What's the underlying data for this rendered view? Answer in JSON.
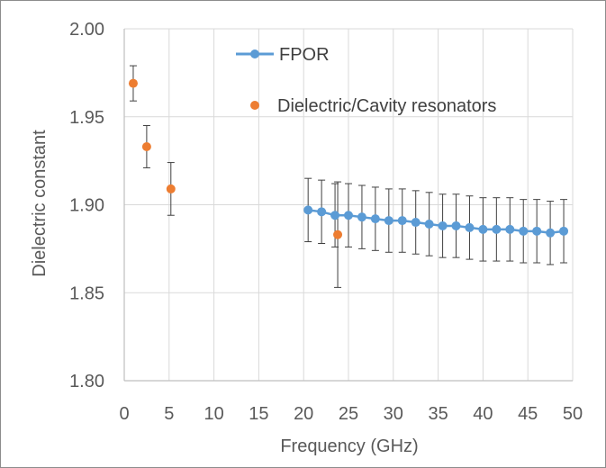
{
  "chart_data": {
    "type": "scatter",
    "xlabel": "Frequency (GHz)",
    "ylabel": "Dielectric constant",
    "xlim": [
      0,
      50
    ],
    "ylim": [
      1.8,
      2.0
    ],
    "x_ticks": [
      "0",
      "5",
      "10",
      "15",
      "20",
      "25",
      "30",
      "35",
      "40",
      "45",
      "50"
    ],
    "y_ticks": [
      "1.80",
      "1.85",
      "1.90",
      "1.95",
      "2.00"
    ],
    "grid": "vertical and horizontal major gridlines",
    "legend_position": "top-center",
    "series": [
      {
        "name": "FPOR",
        "style": "line-with-markers",
        "color": "#5b9bd5",
        "x": [
          20.5,
          22,
          23.5,
          25,
          26.5,
          28,
          29.5,
          31,
          32.5,
          34,
          35.5,
          37,
          38.5,
          40,
          41.5,
          43,
          44.5,
          46,
          47.5,
          49
        ],
        "y": [
          1.897,
          1.896,
          1.894,
          1.894,
          1.893,
          1.892,
          1.891,
          1.891,
          1.89,
          1.889,
          1.888,
          1.888,
          1.887,
          1.886,
          1.886,
          1.886,
          1.885,
          1.885,
          1.884,
          1.885
        ],
        "error": [
          0.018,
          0.018,
          0.018,
          0.018,
          0.018,
          0.018,
          0.018,
          0.018,
          0.018,
          0.018,
          0.018,
          0.018,
          0.018,
          0.018,
          0.018,
          0.018,
          0.018,
          0.018,
          0.018,
          0.018
        ]
      },
      {
        "name": "Dielectric/Cavity resonators",
        "style": "markers",
        "color": "#ed7d31",
        "x": [
          1.0,
          2.5,
          5.2,
          23.8
        ],
        "y": [
          1.969,
          1.933,
          1.909,
          1.883
        ],
        "error": [
          0.01,
          0.012,
          0.015,
          0.03
        ]
      }
    ]
  }
}
